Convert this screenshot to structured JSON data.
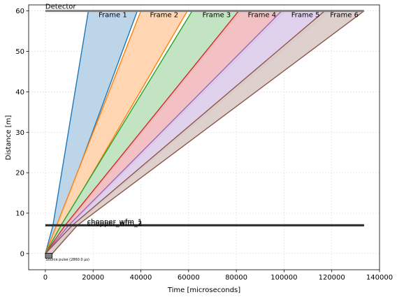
{
  "chart_data": {
    "type": "line",
    "title": "",
    "xlabel": "Time [microseconds]",
    "ylabel": "Distance [m]",
    "xlim": [
      -7000,
      140000
    ],
    "ylim": [
      -4,
      61.5
    ],
    "xticks": [
      0,
      20000,
      40000,
      60000,
      80000,
      100000,
      120000,
      140000
    ],
    "yticks": [
      0,
      10,
      20,
      30,
      40,
      50,
      60
    ],
    "grid": true,
    "detector": {
      "label": "Detector",
      "distance": 60,
      "x_range": [
        0,
        133500
      ]
    },
    "choppers": [
      {
        "label": "chopper_wfm_1",
        "distance": 7.0,
        "x_range": [
          0,
          133500
        ]
      },
      {
        "label": "chopper_wfm_2",
        "distance": 7.2,
        "x_range": [
          0,
          133500
        ]
      }
    ],
    "source_pulse": {
      "label": "Source pulse (2860.0 μs)",
      "start": 0,
      "end": 2860
    },
    "frames": [
      {
        "name": "Frame 1",
        "color": "#1f77b4",
        "fill": "#b9d3e8",
        "origin": [
          0,
          2860
        ],
        "chopper": [
          3200,
          5300
        ],
        "detector": [
          18000,
          38500
        ]
      },
      {
        "name": "Frame 2",
        "color": "#ff7f0e",
        "fill": "#ffd4ad",
        "origin": [
          0,
          2860
        ],
        "chopper": [
          4700,
          7000
        ],
        "detector": [
          40000,
          59500
        ]
      },
      {
        "name": "Frame 3",
        "color": "#2ca02c",
        "fill": "#c0e3bf",
        "origin": [
          0,
          2860
        ],
        "chopper": [
          6600,
          9000
        ],
        "detector": [
          61500,
          82000
        ]
      },
      {
        "name": "Frame 4",
        "color": "#d62728",
        "fill": "#f2bec0",
        "origin": [
          0,
          2860
        ],
        "chopper": [
          8300,
          10600
        ],
        "detector": [
          81000,
          100500
        ]
      },
      {
        "name": "Frame 5",
        "color": "#9467bd",
        "fill": "#decfec",
        "origin": [
          0,
          2860
        ],
        "chopper": [
          9800,
          12000
        ],
        "detector": [
          99000,
          119000
        ]
      },
      {
        "name": "Frame 6",
        "color": "#8c564b",
        "fill": "#dccdc9",
        "origin": [
          0,
          2860
        ],
        "chopper": [
          11300,
          13400
        ],
        "detector": [
          117000,
          133500
        ]
      }
    ]
  }
}
